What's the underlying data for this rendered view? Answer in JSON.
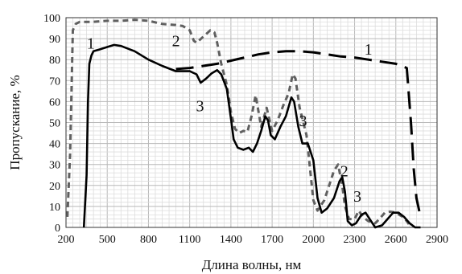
{
  "chart_data": {
    "type": "line",
    "title": "",
    "xlabel": "Длина волны, нм",
    "ylabel": "Пропускание, %",
    "xlim": [
      200,
      2900
    ],
    "ylim": [
      0,
      100
    ],
    "grid": true,
    "xticks": [
      200,
      500,
      800,
      1100,
      1400,
      1700,
      2000,
      2300,
      2600,
      2900
    ],
    "yticks": [
      0,
      10,
      20,
      30,
      40,
      50,
      60,
      70,
      80,
      90,
      100
    ],
    "series": [
      {
        "name": "1",
        "style": "long-dash",
        "color": "#000000",
        "points": [
          [
            1000,
            75.5
          ],
          [
            1100,
            76
          ],
          [
            1200,
            77
          ],
          [
            1300,
            78
          ],
          [
            1400,
            79.5
          ],
          [
            1500,
            81
          ],
          [
            1600,
            82.5
          ],
          [
            1700,
            83.5
          ],
          [
            1800,
            84
          ],
          [
            1900,
            84
          ],
          [
            2000,
            83.5
          ],
          [
            2100,
            82.5
          ],
          [
            2200,
            81.5
          ],
          [
            2300,
            81
          ],
          [
            2400,
            80
          ],
          [
            2500,
            79
          ],
          [
            2600,
            78
          ],
          [
            2680,
            76
          ],
          [
            2710,
            50
          ],
          [
            2730,
            28
          ],
          [
            2750,
            14
          ],
          [
            2780,
            5
          ]
        ]
      },
      {
        "name": "2",
        "style": "short-dash",
        "color": "#606060",
        "points": [
          [
            210,
            5
          ],
          [
            230,
            35
          ],
          [
            250,
            94
          ],
          [
            270,
            97
          ],
          [
            300,
            98
          ],
          [
            400,
            98
          ],
          [
            500,
            98.5
          ],
          [
            600,
            98.5
          ],
          [
            700,
            99
          ],
          [
            800,
            98.5
          ],
          [
            900,
            97
          ],
          [
            1000,
            96.5
          ],
          [
            1050,
            96
          ],
          [
            1100,
            94
          ],
          [
            1130,
            89
          ],
          [
            1150,
            88
          ],
          [
            1200,
            91
          ],
          [
            1250,
            94
          ],
          [
            1280,
            93
          ],
          [
            1300,
            88
          ],
          [
            1330,
            78
          ],
          [
            1370,
            68
          ],
          [
            1400,
            55
          ],
          [
            1430,
            47
          ],
          [
            1460,
            45
          ],
          [
            1490,
            46
          ],
          [
            1520,
            45.5
          ],
          [
            1550,
            53
          ],
          [
            1580,
            63
          ],
          [
            1620,
            48
          ],
          [
            1660,
            57
          ],
          [
            1700,
            46
          ],
          [
            1740,
            51
          ],
          [
            1780,
            58
          ],
          [
            1820,
            64
          ],
          [
            1850,
            73
          ],
          [
            1870,
            71
          ],
          [
            1900,
            57
          ],
          [
            1950,
            44
          ],
          [
            2000,
            13
          ],
          [
            2030,
            8
          ],
          [
            2080,
            13
          ],
          [
            2120,
            21
          ],
          [
            2150,
            27
          ],
          [
            2180,
            30
          ],
          [
            2210,
            20
          ],
          [
            2230,
            10
          ],
          [
            2260,
            4
          ],
          [
            2300,
            4
          ],
          [
            2330,
            8
          ],
          [
            2360,
            5
          ],
          [
            2400,
            3
          ],
          [
            2450,
            2
          ],
          [
            2480,
            4
          ],
          [
            2520,
            7
          ],
          [
            2560,
            7.5
          ],
          [
            2600,
            7
          ],
          [
            2650,
            5
          ],
          [
            2680,
            3
          ],
          [
            2700,
            1
          ]
        ]
      },
      {
        "name": "3",
        "style": "solid",
        "color": "#000000",
        "points": [
          [
            330,
            0
          ],
          [
            350,
            25
          ],
          [
            360,
            60
          ],
          [
            370,
            78
          ],
          [
            385,
            82
          ],
          [
            400,
            84
          ],
          [
            450,
            85
          ],
          [
            500,
            86
          ],
          [
            550,
            87
          ],
          [
            600,
            86.5
          ],
          [
            700,
            84
          ],
          [
            800,
            80
          ],
          [
            900,
            77
          ],
          [
            1000,
            74.5
          ],
          [
            1100,
            74.5
          ],
          [
            1150,
            73
          ],
          [
            1180,
            69
          ],
          [
            1220,
            71
          ],
          [
            1260,
            73.5
          ],
          [
            1300,
            75
          ],
          [
            1330,
            73
          ],
          [
            1370,
            66
          ],
          [
            1400,
            52
          ],
          [
            1420,
            42
          ],
          [
            1450,
            38
          ],
          [
            1490,
            37
          ],
          [
            1530,
            38
          ],
          [
            1560,
            36
          ],
          [
            1590,
            40
          ],
          [
            1620,
            46
          ],
          [
            1650,
            53
          ],
          [
            1670,
            51
          ],
          [
            1690,
            44
          ],
          [
            1720,
            42
          ],
          [
            1760,
            48
          ],
          [
            1800,
            53
          ],
          [
            1840,
            62
          ],
          [
            1860,
            60
          ],
          [
            1890,
            48
          ],
          [
            1920,
            40
          ],
          [
            1960,
            40
          ],
          [
            2000,
            32
          ],
          [
            2030,
            14
          ],
          [
            2060,
            7
          ],
          [
            2100,
            9
          ],
          [
            2150,
            14
          ],
          [
            2190,
            22
          ],
          [
            2210,
            24
          ],
          [
            2230,
            17
          ],
          [
            2250,
            3
          ],
          [
            2280,
            1
          ],
          [
            2310,
            2
          ],
          [
            2350,
            6
          ],
          [
            2380,
            7
          ],
          [
            2420,
            3
          ],
          [
            2450,
            0
          ],
          [
            2500,
            1
          ],
          [
            2540,
            4
          ],
          [
            2580,
            7
          ],
          [
            2620,
            7
          ],
          [
            2660,
            5
          ],
          [
            2700,
            2
          ],
          [
            2740,
            0
          ],
          [
            2780,
            0
          ]
        ]
      }
    ],
    "curve_labels": [
      {
        "text": "1",
        "x": 380,
        "y": 88
      },
      {
        "text": "2",
        "x": 1000,
        "y": 89
      },
      {
        "text": "1",
        "x": 2400,
        "y": 85
      },
      {
        "text": "3",
        "x": 1175,
        "y": 58
      },
      {
        "text": "3",
        "x": 1925,
        "y": 51
      },
      {
        "text": "2",
        "x": 2225,
        "y": 27
      },
      {
        "text": "3",
        "x": 2320,
        "y": 15
      }
    ]
  }
}
